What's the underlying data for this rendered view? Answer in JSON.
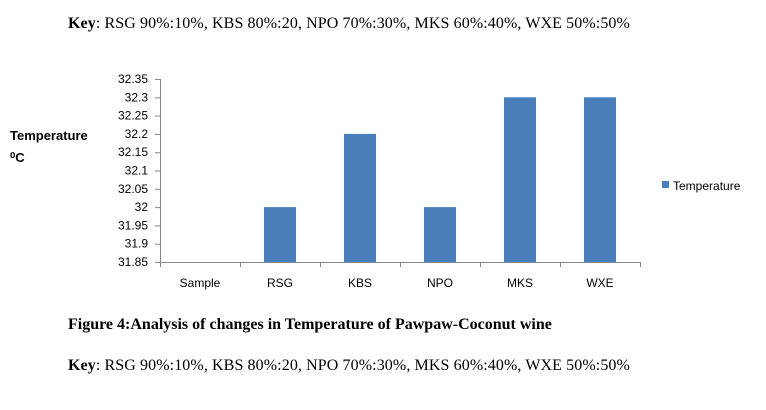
{
  "key_top": {
    "key_word": "Key",
    "text": ": RSG 90%:10%, KBS 80%:20, NPO 70%:30%, MKS 60%:40%, WXE 50%:50%"
  },
  "caption": "Figure 4:Analysis of changes in Temperature of Pawpaw-Coconut wine",
  "key_bottom": {
    "key_word": "Key",
    "text": ": RSG 90%:10%, KBS 80%:20, NPO 70%:30%, MKS 60%:40%, WXE 50%:50%"
  },
  "chart_data": {
    "type": "bar",
    "title": "",
    "ylabel_line1": "Temperature",
    "ylabel_line2": "⁰C",
    "xlabel": "",
    "categories": [
      "Sample",
      "RSG",
      "KBS",
      "NPO",
      "MKS",
      "WXE"
    ],
    "series": [
      {
        "name": "Temperature",
        "values": [
          null,
          32.0,
          32.2,
          32.0,
          32.3,
          32.3
        ],
        "color": "#4a7ebb"
      }
    ],
    "ylim": [
      31.85,
      32.35
    ],
    "yticks": [
      32.35,
      32.3,
      32.25,
      32.2,
      32.15,
      32.1,
      32.05,
      32,
      31.95,
      31.9,
      31.85
    ],
    "ytick_labels": [
      "32.35",
      "32.3",
      "32.25",
      "32.2",
      "32.15",
      "32.1",
      "32.05",
      "32",
      "31.95",
      "31.9",
      "31.85"
    ],
    "grid": false,
    "legend_position": "right"
  }
}
